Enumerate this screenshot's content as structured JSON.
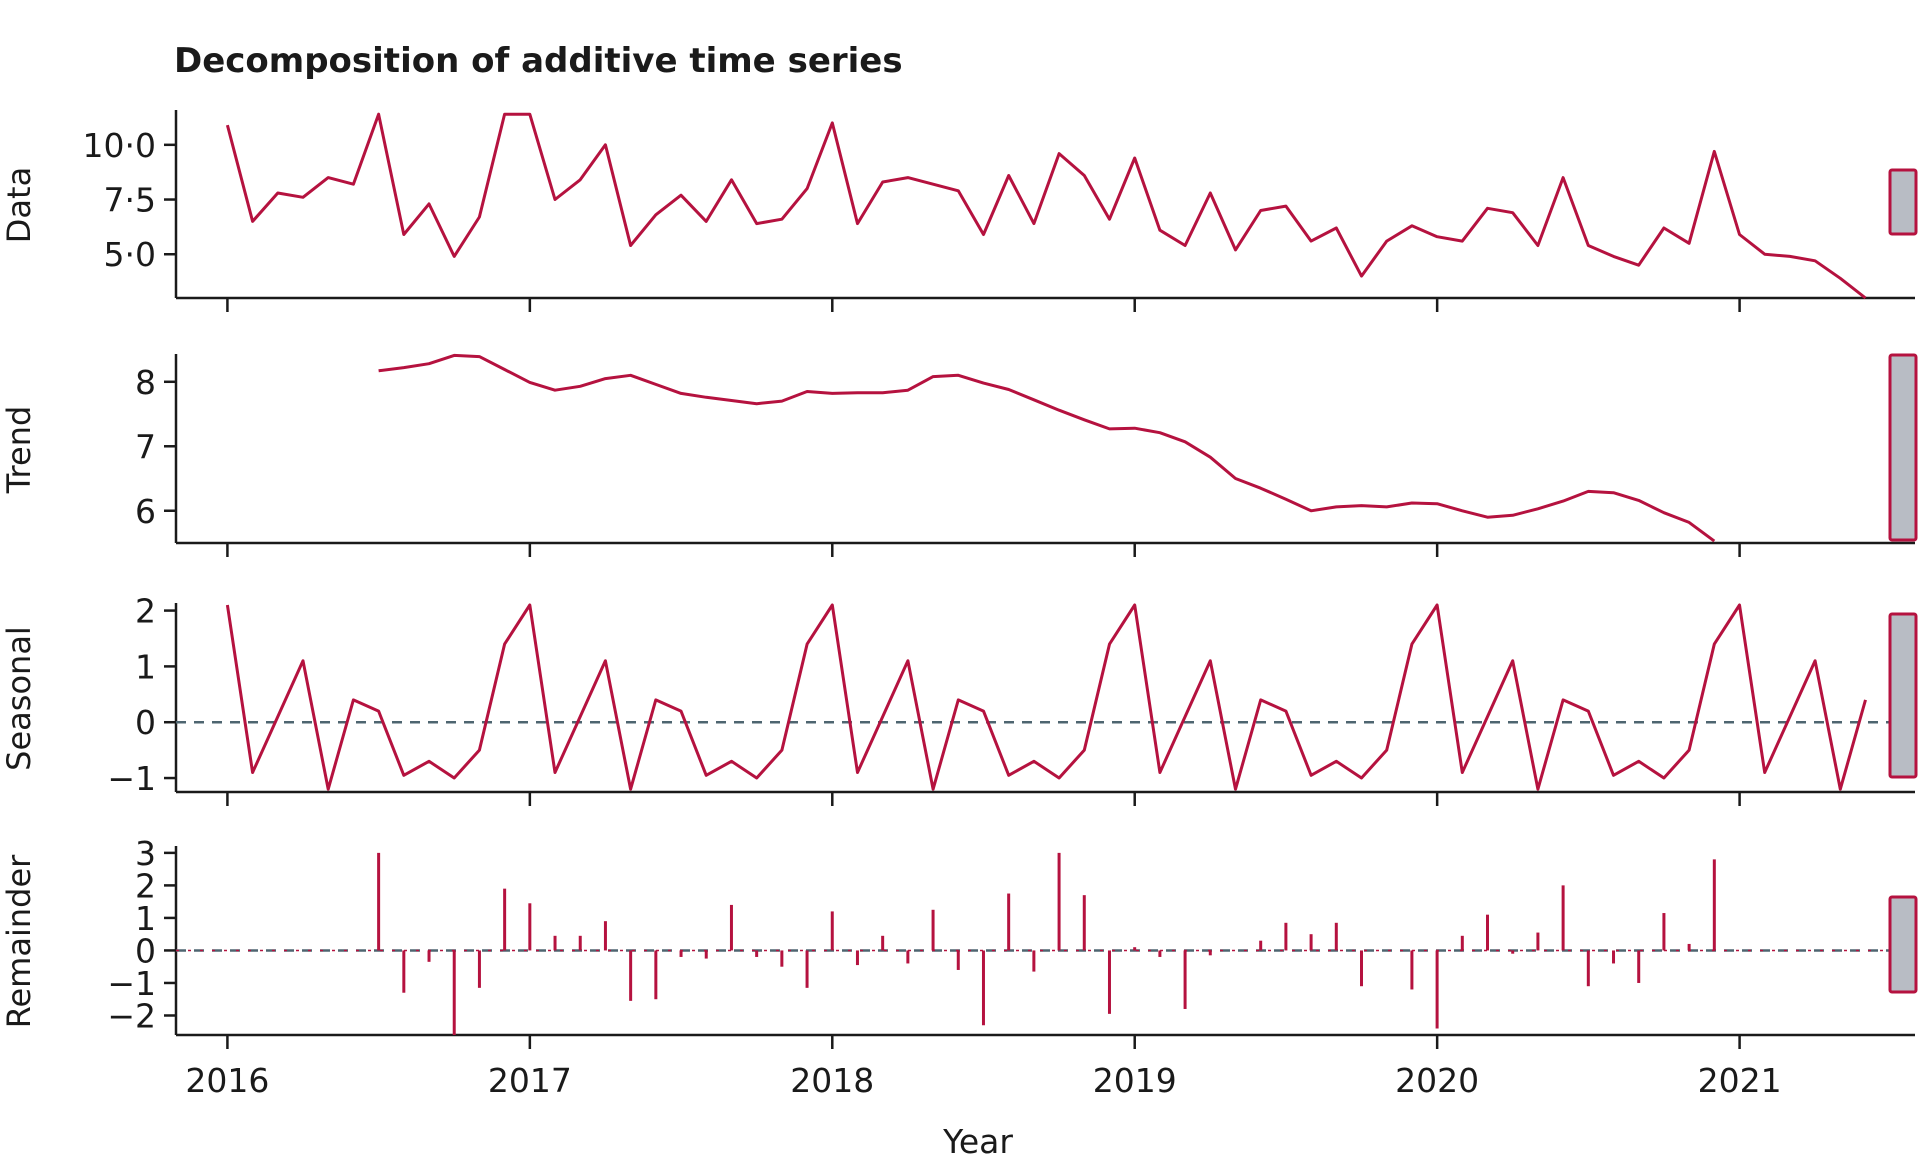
{
  "chart_data": {
    "type": "line",
    "title": "Decomposition of additive time series",
    "xlabel": "Year",
    "x_ticks": [
      "2016",
      "2017",
      "2018",
      "2019",
      "2020",
      "2021"
    ],
    "x_start": 2016.0,
    "x_step": 0.08333,
    "xlim": [
      2015.83,
      2021.58
    ],
    "panels": [
      {
        "name": "Data",
        "kind": "line",
        "ylim": [
          3.0,
          11.5
        ],
        "yticks": [
          5.0,
          7.5,
          10.0
        ],
        "ytick_labels": [
          "5·0",
          "7·5",
          "10·0"
        ],
        "zero_line": false,
        "values": [
          10.9,
          6.5,
          7.8,
          7.6,
          8.5,
          8.2,
          11.4,
          5.9,
          7.3,
          4.9,
          6.7,
          11.4,
          11.4,
          7.5,
          8.4,
          10.0,
          5.4,
          6.8,
          7.7,
          6.5,
          8.4,
          6.4,
          6.6,
          8.0,
          11.0,
          6.4,
          8.3,
          8.5,
          8.2,
          7.9,
          5.9,
          8.6,
          6.4,
          9.6,
          8.6,
          6.6,
          9.4,
          6.1,
          5.4,
          7.8,
          5.2,
          7.0,
          7.2,
          5.6,
          6.2,
          4.0,
          5.6,
          6.3,
          5.8,
          5.6,
          7.1,
          6.9,
          5.4,
          8.5,
          5.4,
          4.9,
          4.5,
          6.2,
          5.5,
          9.7,
          5.9,
          5.0,
          4.9,
          4.7,
          3.9,
          3.0
        ]
      },
      {
        "name": "Trend",
        "kind": "line",
        "ylim": [
          5.5,
          8.4
        ],
        "yticks": [
          6,
          7,
          8
        ],
        "ytick_labels": [
          "6",
          "7",
          "8"
        ],
        "zero_line": false,
        "values": [
          null,
          null,
          null,
          null,
          null,
          null,
          8.17,
          8.22,
          8.28,
          8.41,
          8.39,
          8.19,
          7.99,
          7.87,
          7.93,
          8.05,
          8.1,
          7.96,
          7.82,
          7.76,
          7.71,
          7.66,
          7.7,
          7.85,
          7.82,
          7.83,
          7.83,
          7.87,
          8.08,
          8.1,
          7.98,
          7.88,
          7.72,
          7.56,
          7.41,
          7.27,
          7.28,
          7.21,
          7.07,
          6.83,
          6.5,
          6.35,
          6.18,
          6.0,
          6.06,
          6.08,
          6.06,
          6.12,
          6.11,
          6.0,
          5.9,
          5.93,
          6.03,
          6.15,
          6.3,
          6.28,
          6.16,
          5.97,
          5.82,
          5.53
        ]
      },
      {
        "name": "Seasonal",
        "kind": "line",
        "ylim": [
          -1.25,
          2.1
        ],
        "yticks": [
          -1,
          0,
          1,
          2
        ],
        "ytick_labels": [
          "−1",
          "0",
          "1",
          "2"
        ],
        "zero_line": true,
        "values": [
          2.1,
          -0.9,
          0.1,
          1.1,
          -1.2,
          0.4,
          0.2,
          -0.95,
          -0.7,
          -1.0,
          -0.5,
          1.4,
          2.1,
          -0.9,
          0.1,
          1.1,
          -1.2,
          0.4,
          0.2,
          -0.95,
          -0.7,
          -1.0,
          -0.5,
          1.4,
          2.1,
          -0.9,
          0.1,
          1.1,
          -1.2,
          0.4,
          0.2,
          -0.95,
          -0.7,
          -1.0,
          -0.5,
          1.4,
          2.1,
          -0.9,
          0.1,
          1.1,
          -1.2,
          0.4,
          0.2,
          -0.95,
          -0.7,
          -1.0,
          -0.5,
          1.4,
          2.1,
          -0.9,
          0.1,
          1.1,
          -1.2,
          0.4,
          0.2,
          -0.95,
          -0.7,
          -1.0,
          -0.5,
          1.4,
          2.1,
          -0.9,
          0.1,
          1.1,
          -1.2,
          0.4
        ]
      },
      {
        "name": "Remainder",
        "kind": "bar",
        "ylim": [
          -2.6,
          3.15
        ],
        "yticks": [
          -2,
          -1,
          0,
          1,
          2,
          3
        ],
        "ytick_labels": [
          "−2",
          "−1",
          "0",
          "1",
          "2",
          "3"
        ],
        "zero_line": true,
        "values": [
          null,
          null,
          null,
          null,
          null,
          null,
          3.0,
          -1.3,
          -0.35,
          -2.6,
          -1.15,
          1.9,
          1.45,
          0.45,
          0.45,
          0.9,
          -1.55,
          -1.5,
          -0.2,
          -0.25,
          1.4,
          -0.2,
          -0.5,
          -1.15,
          1.2,
          -0.45,
          0.45,
          -0.4,
          1.25,
          -0.6,
          -2.3,
          1.75,
          -0.65,
          3.0,
          1.7,
          -1.95,
          0.1,
          -0.2,
          -1.8,
          -0.15,
          0.0,
          0.3,
          0.85,
          0.5,
          0.85,
          -1.1,
          0.0,
          -1.2,
          -2.4,
          0.45,
          1.1,
          -0.1,
          0.55,
          2.0,
          -1.1,
          -0.4,
          -1.0,
          1.15,
          0.2,
          2.8
        ]
      }
    ]
  }
}
